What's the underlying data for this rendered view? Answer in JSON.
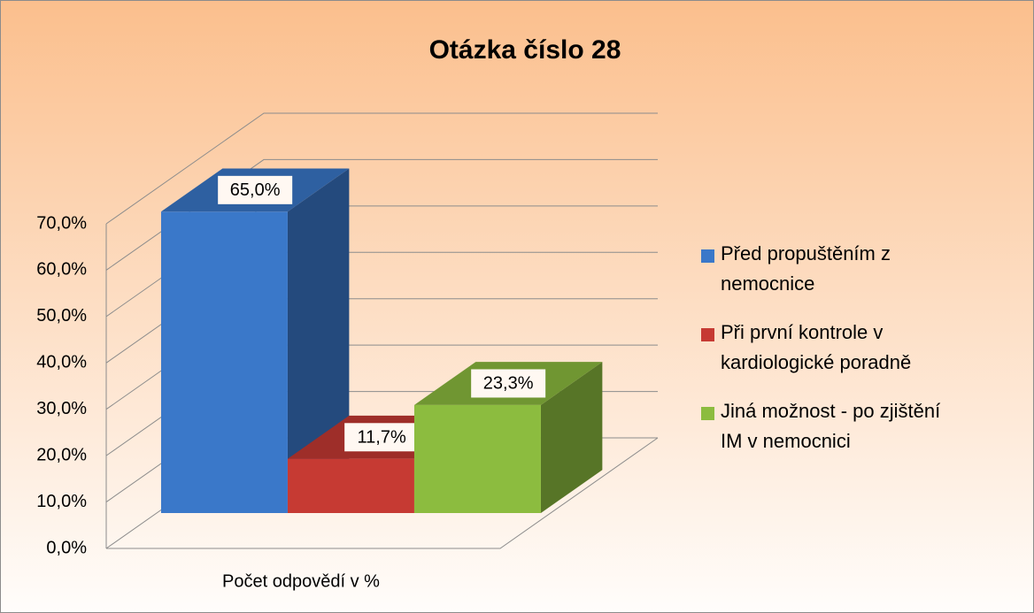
{
  "chart_data": {
    "type": "bar3d",
    "title": "Otázka číslo 28",
    "categories": [
      "Počet odpovědí v %"
    ],
    "series": [
      {
        "name": "Před propuštěním z nemocnice",
        "color": "#3a78c9",
        "values": [
          65.0
        ],
        "value_labels": [
          "65,0%"
        ]
      },
      {
        "name": "Při první kontrole v kardiologické poradně",
        "color": "#c63a33",
        "values": [
          11.7
        ],
        "value_labels": [
          "11,7%"
        ]
      },
      {
        "name": "Jiná možnost - po zjištění IM v nemocnici",
        "color": "#8cbc3f",
        "values": [
          23.3
        ],
        "value_labels": [
          "23,3%"
        ]
      }
    ],
    "ylim": [
      0,
      70
    ],
    "yticks": [
      {
        "value": 0,
        "label": "0,0%"
      },
      {
        "value": 10,
        "label": "10,0%"
      },
      {
        "value": 20,
        "label": "20,0%"
      },
      {
        "value": 30,
        "label": "30,0%"
      },
      {
        "value": 40,
        "label": "40,0%"
      },
      {
        "value": 50,
        "label": "50,0%"
      },
      {
        "value": 60,
        "label": "60,0%"
      },
      {
        "value": 70,
        "label": "70,0%"
      }
    ],
    "grid": true,
    "legend": "right"
  }
}
